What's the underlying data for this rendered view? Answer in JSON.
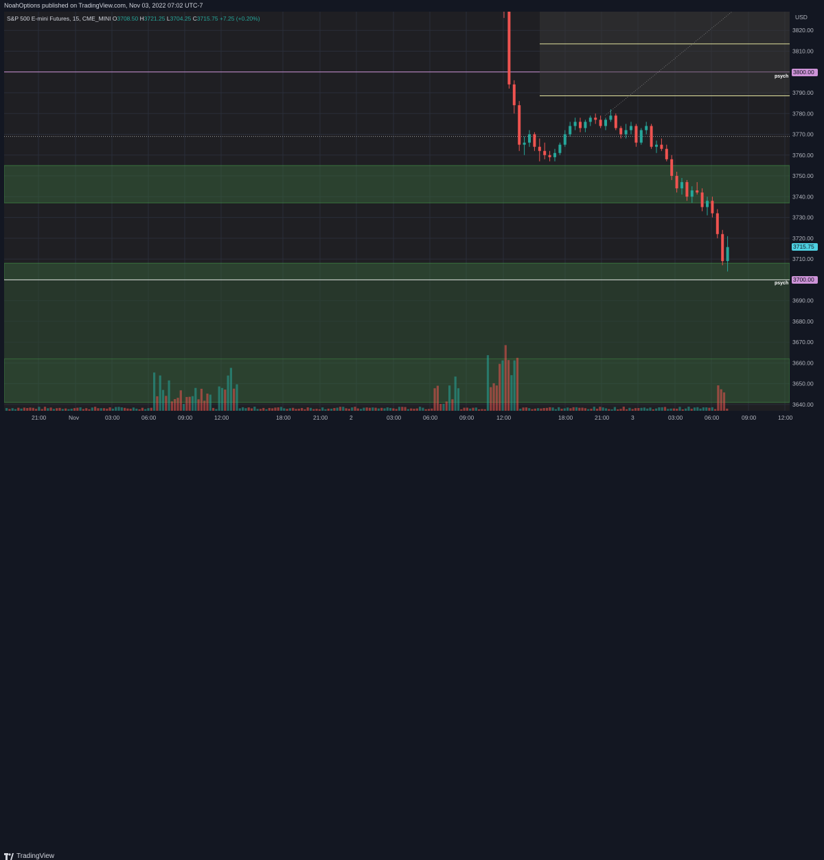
{
  "header": {
    "published_text": "NoahOptions published on TradingView.com, Nov 03, 2022 07:02 UTC-7"
  },
  "legend": {
    "symbol": "S&P 500 E-mini Futures, 15, CME_MINI",
    "open_label": "O",
    "open": "3708.50",
    "high_label": "H",
    "high": "3721.25",
    "low_label": "L",
    "low": "3704.25",
    "close_label": "C",
    "close": "3715.75",
    "change": "+7.25 (+0.20%)"
  },
  "price_axis": {
    "currency": "USD",
    "ticks": [
      "3820.00",
      "3810.00",
      "3790.00",
      "3780.00",
      "3770.00",
      "3760.00",
      "3750.00",
      "3740.00",
      "3730.00",
      "3720.00",
      "3710.00",
      "3690.00",
      "3680.00",
      "3670.00",
      "3660.00",
      "3650.00",
      "3640.00"
    ],
    "tags": {
      "psych_high": "3800.00",
      "last": "3715.75",
      "psych_low": "3700.00"
    }
  },
  "annotations": {
    "psych_high": "psych",
    "psych_low": "psych"
  },
  "time_axis": {
    "ticks": [
      "21:00",
      "Nov",
      "03:00",
      "06:00",
      "09:00",
      "12:00",
      "18:00",
      "21:00",
      "2",
      "03:00",
      "06:00",
      "09:00",
      "12:00",
      "18:00",
      "21:00",
      "3",
      "03:00",
      "06:00",
      "09:00",
      "12:00"
    ]
  },
  "footer": {
    "brand": "TradingView"
  },
  "colors": {
    "up": "#26a69a",
    "down": "#ef5350",
    "psych_line": "#ce93d8",
    "last_tag": "#4dd0e1",
    "zone_fill": "#3a6b3e"
  },
  "chart_data": {
    "type": "candlestick",
    "title": "S&P 500 E-mini Futures, 15, CME_MINI",
    "ylim": [
      3637,
      3829
    ],
    "zones": [
      {
        "from": 3737,
        "to": 3755
      },
      {
        "from": 3700,
        "to": 3708
      },
      {
        "from": 3641,
        "to": 3662
      }
    ],
    "horizontal_lines": [
      3800,
      3700,
      3769
    ],
    "candles_visible_from": "Nov 01 12:00"
  }
}
